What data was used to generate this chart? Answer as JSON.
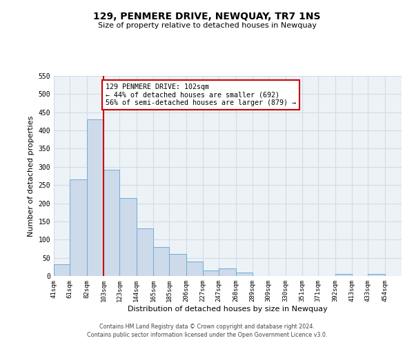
{
  "title": "129, PENMERE DRIVE, NEWQUAY, TR7 1NS",
  "subtitle": "Size of property relative to detached houses in Newquay",
  "xlabel": "Distribution of detached houses by size in Newquay",
  "ylabel": "Number of detached properties",
  "bar_left_edges": [
    41,
    61,
    82,
    103,
    123,
    144,
    165,
    185,
    206,
    227,
    247,
    268,
    289,
    309,
    330,
    351,
    371,
    392,
    413,
    433
  ],
  "bar_widths": [
    20,
    21,
    21,
    20,
    21,
    21,
    20,
    21,
    21,
    20,
    21,
    21,
    20,
    21,
    21,
    20,
    21,
    21,
    20,
    21
  ],
  "bar_heights": [
    32,
    265,
    430,
    293,
    215,
    130,
    79,
    60,
    40,
    15,
    20,
    10,
    0,
    0,
    0,
    0,
    0,
    5,
    0,
    5
  ],
  "bar_color": "#ccdaea",
  "bar_edge_color": "#6baed6",
  "tick_labels": [
    "41sqm",
    "61sqm",
    "82sqm",
    "103sqm",
    "123sqm",
    "144sqm",
    "165sqm",
    "185sqm",
    "206sqm",
    "227sqm",
    "247sqm",
    "268sqm",
    "289sqm",
    "309sqm",
    "330sqm",
    "351sqm",
    "371sqm",
    "392sqm",
    "413sqm",
    "433sqm",
    "454sqm"
  ],
  "tick_positions": [
    41,
    61,
    82,
    103,
    123,
    144,
    165,
    185,
    206,
    227,
    247,
    268,
    289,
    309,
    330,
    351,
    371,
    392,
    413,
    433,
    454
  ],
  "ylim": [
    0,
    550
  ],
  "xlim": [
    41,
    475
  ],
  "vline_x": 103,
  "vline_color": "#cc0000",
  "annotation_text": "129 PENMERE DRIVE: 102sqm\n← 44% of detached houses are smaller (692)\n56% of semi-detached houses are larger (879) →",
  "annotation_box_color": "#ffffff",
  "annotation_box_edge": "#cc0000",
  "grid_color": "#d0dce8",
  "background_color": "#edf2f7",
  "footer_line1": "Contains HM Land Registry data © Crown copyright and database right 2024.",
  "footer_line2": "Contains public sector information licensed under the Open Government Licence v3.0."
}
